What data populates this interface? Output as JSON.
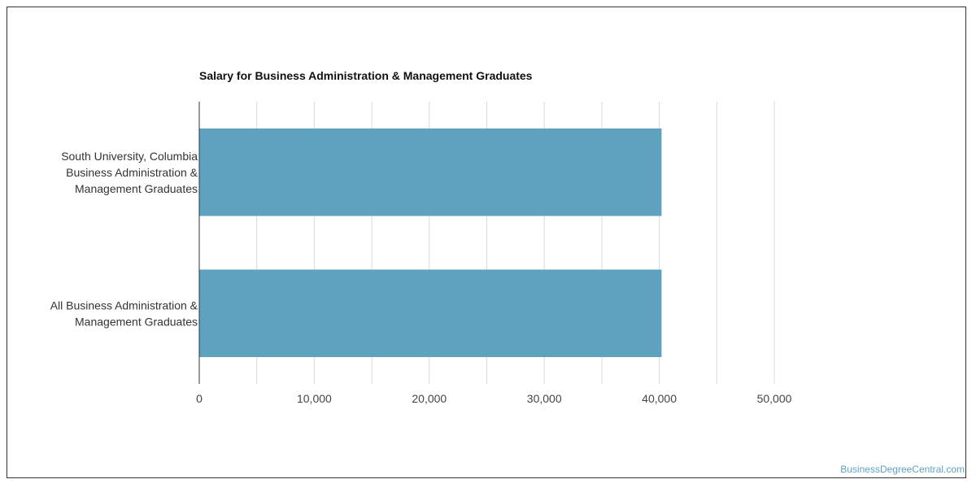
{
  "chart_data": {
    "type": "bar",
    "orientation": "horizontal",
    "title": "Salary for Business Administration & Management Graduates",
    "categories": [
      [
        "South University, Columbia",
        "Business Administration &",
        "Management Graduates"
      ],
      [
        "All Business Administration &",
        "Management Graduates"
      ]
    ],
    "values": [
      40200,
      40200
    ],
    "xlim": [
      0,
      50000
    ],
    "xticks": [
      0,
      10000,
      20000,
      30000,
      40000,
      50000
    ],
    "xtick_labels": [
      "0",
      "10,000",
      "20,000",
      "30,000",
      "40,000",
      "50,000"
    ],
    "grid": true,
    "bar_color": "#5ea2c0",
    "grid_color": "#d9d9d9",
    "xlabel": "",
    "ylabel": ""
  },
  "watermark": "BusinessDegreeCentral.com"
}
